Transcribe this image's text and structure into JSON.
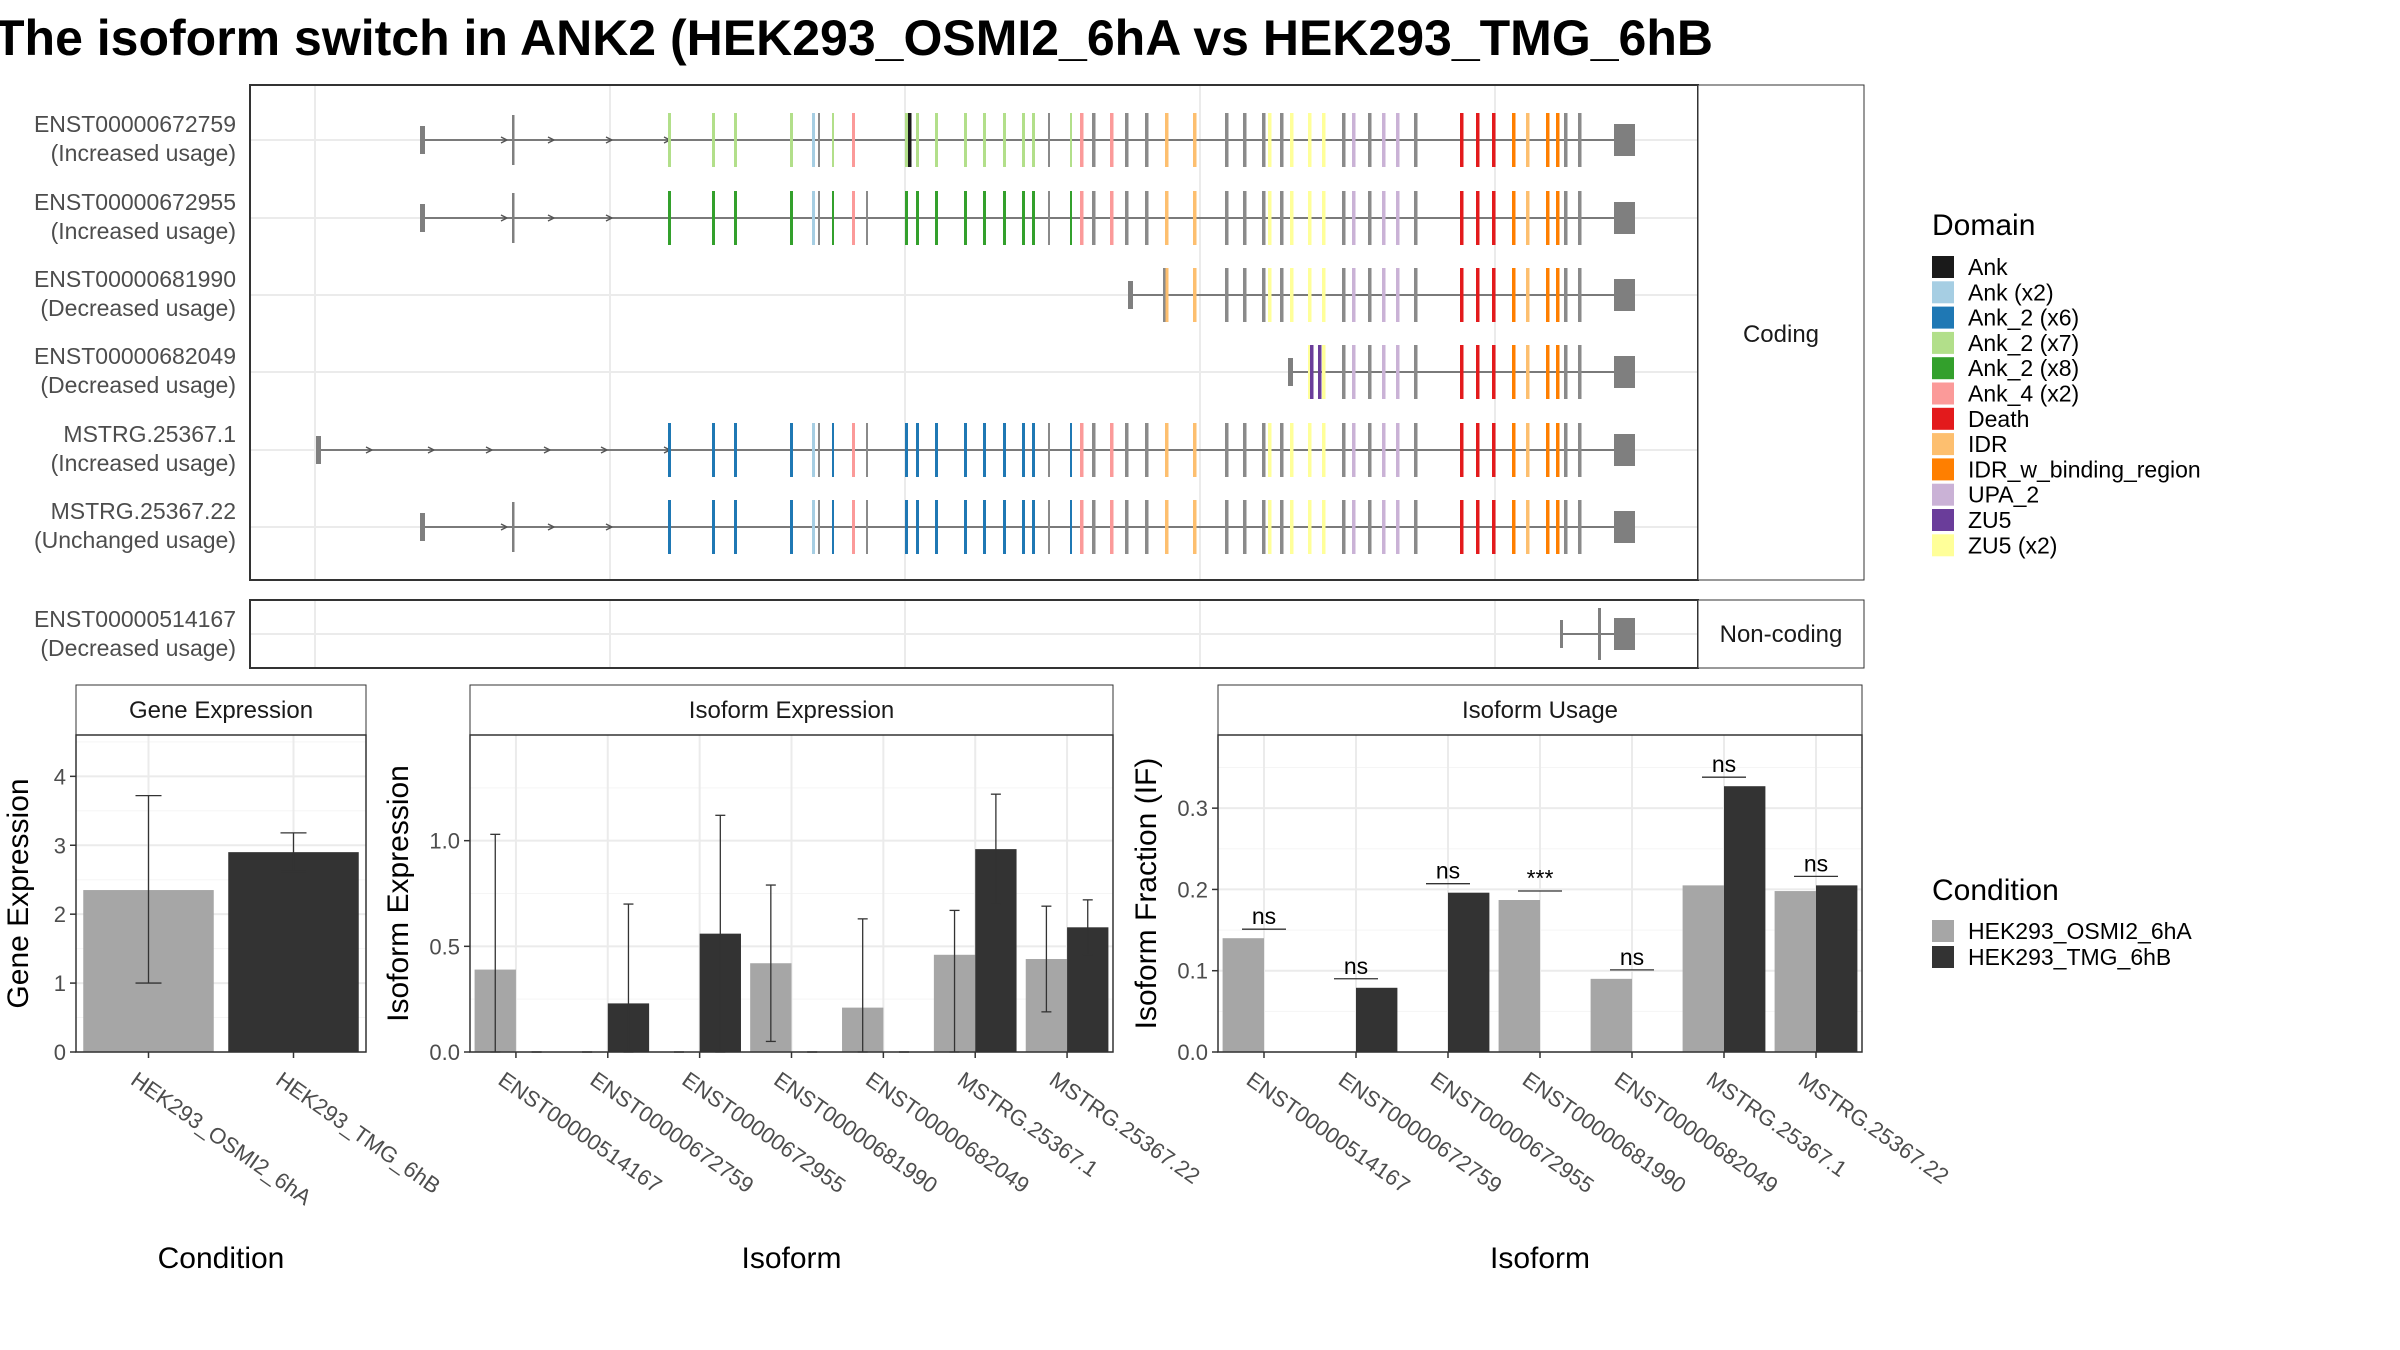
{
  "title": "The isoform switch in ANK2 (HEK293_OSMI2_6hA vs HEK293_TMG_6hB",
  "domains": [
    {
      "name": "Ank",
      "color": "#1a1a1a"
    },
    {
      "name": "Ank (x2)",
      "color": "#a6cee3"
    },
    {
      "name": "Ank_2 (x6)",
      "color": "#1f78b4"
    },
    {
      "name": "Ank_2 (x7)",
      "color": "#b2df8a"
    },
    {
      "name": "Ank_2 (x8)",
      "color": "#33a02c"
    },
    {
      "name": "Ank_4 (x2)",
      "color": "#fb9a99"
    },
    {
      "name": "Death",
      "color": "#e31a1c"
    },
    {
      "name": "IDR",
      "color": "#fdbf6f"
    },
    {
      "name": "IDR_w_binding_region",
      "color": "#ff7f00"
    },
    {
      "name": "UPA_2",
      "color": "#cab2d6"
    },
    {
      "name": "ZU5",
      "color": "#6a3d9a"
    },
    {
      "name": "ZU5 (x2)",
      "color": "#ffff99"
    }
  ],
  "legend": {
    "domain_title": "Domain",
    "condition_title": "Condition"
  },
  "structure": {
    "coding_label": "Coding",
    "noncoding_label": "Non-coding",
    "coding_transcripts": [
      {
        "id": "ENST00000672759",
        "usage": "(Increased usage)"
      },
      {
        "id": "ENST00000672955",
        "usage": "(Increased usage)"
      },
      {
        "id": "ENST00000681990",
        "usage": "(Decreased usage)"
      },
      {
        "id": "ENST00000682049",
        "usage": "(Decreased usage)"
      },
      {
        "id": "MSTRG.25367.1",
        "usage": "(Increased usage)"
      },
      {
        "id": "MSTRG.25367.22",
        "usage": "(Unchanged usage)"
      }
    ],
    "noncoding_transcripts": [
      {
        "id": "ENST00000514167",
        "usage": "(Decreased usage)"
      }
    ]
  },
  "conditions": [
    {
      "name": "HEK293_OSMI2_6hA",
      "color": "#a6a6a6"
    },
    {
      "name": "HEK293_TMG_6hB",
      "color": "#333333"
    }
  ],
  "chart_data": [
    {
      "type": "bar",
      "title": "Gene Expression",
      "xlabel": "Condition",
      "ylabel": "Gene Expression",
      "ylim": [
        0,
        4.6
      ],
      "yticks": [
        0,
        1,
        2,
        3,
        4
      ],
      "categories": [
        "HEK293_OSMI2_6hA",
        "HEK293_TMG_6hB"
      ],
      "values": [
        2.35,
        2.9
      ],
      "error_low": [
        1.0,
        2.62
      ],
      "error_high": [
        3.72,
        3.18
      ]
    },
    {
      "type": "bar",
      "title": "Isoform Expression",
      "xlabel": "Isoform",
      "ylabel": "Isoform Expression",
      "ylim": [
        0,
        1.5
      ],
      "yticks": [
        0.0,
        0.5,
        1.0
      ],
      "categories": [
        "ENST00000514167",
        "ENST00000672759",
        "ENST00000672955",
        "ENST00000681990",
        "ENST00000682049",
        "MSTRG.25367.1",
        "MSTRG.25367.22"
      ],
      "series": [
        {
          "name": "HEK293_OSMI2_6hA",
          "values": [
            0.39,
            0,
            0,
            0.42,
            0.21,
            0.46,
            0.44
          ],
          "error_low": [
            0,
            0,
            0,
            0.05,
            0,
            0,
            0.19
          ],
          "error_high": [
            1.03,
            0,
            0,
            0.79,
            0.63,
            0.67,
            0.69
          ]
        },
        {
          "name": "HEK293_TMG_6hB",
          "values": [
            0,
            0.23,
            0.56,
            0,
            0,
            0.96,
            0.59
          ],
          "error_low": [
            0,
            0,
            0,
            0,
            0,
            0.7,
            0.46
          ],
          "error_high": [
            0,
            0.7,
            1.12,
            0,
            0,
            1.22,
            0.72
          ]
        }
      ]
    },
    {
      "type": "bar",
      "title": "Isoform Usage",
      "xlabel": "Isoform",
      "ylabel": "Isoform Fraction (IF)",
      "ylim": [
        0,
        0.39
      ],
      "yticks": [
        0.0,
        0.1,
        0.2,
        0.3
      ],
      "categories": [
        "ENST00000514167",
        "ENST00000672759",
        "ENST00000672955",
        "ENST00000681990",
        "ENST00000682049",
        "MSTRG.25367.1",
        "MSTRG.25367.22"
      ],
      "series": [
        {
          "name": "HEK293_OSMI2_6hA",
          "values": [
            0.14,
            0,
            0,
            0.187,
            0.09,
            0.205,
            0.198
          ]
        },
        {
          "name": "HEK293_TMG_6hB",
          "values": [
            0,
            0.079,
            0.196,
            0,
            0,
            0.327,
            0.205
          ]
        }
      ],
      "significance": [
        "ns",
        "ns",
        "ns",
        "***",
        "ns",
        "ns",
        "ns"
      ]
    }
  ]
}
